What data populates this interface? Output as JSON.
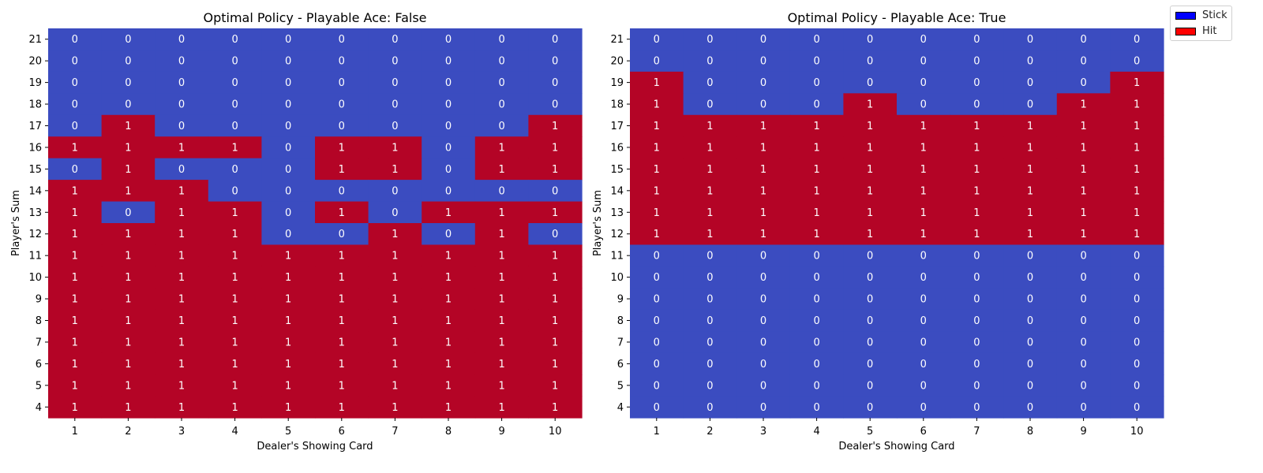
{
  "chart_data": [
    {
      "type": "heatmap",
      "title": "Optimal Policy - Playable Ace: False",
      "xlabel": "Dealer's Showing Card",
      "ylabel": "Player's Sum",
      "x": [
        1,
        2,
        3,
        4,
        5,
        6,
        7,
        8,
        9,
        10
      ],
      "y": [
        21,
        20,
        19,
        18,
        17,
        16,
        15,
        14,
        13,
        12,
        11,
        10,
        9,
        8,
        7,
        6,
        5,
        4
      ],
      "values": [
        [
          0,
          0,
          0,
          0,
          0,
          0,
          0,
          0,
          0,
          0
        ],
        [
          0,
          0,
          0,
          0,
          0,
          0,
          0,
          0,
          0,
          0
        ],
        [
          0,
          0,
          0,
          0,
          0,
          0,
          0,
          0,
          0,
          0
        ],
        [
          0,
          0,
          0,
          0,
          0,
          0,
          0,
          0,
          0,
          0
        ],
        [
          0,
          1,
          0,
          0,
          0,
          0,
          0,
          0,
          0,
          1
        ],
        [
          1,
          1,
          1,
          1,
          0,
          1,
          1,
          0,
          1,
          1
        ],
        [
          0,
          1,
          0,
          0,
          0,
          1,
          1,
          0,
          1,
          1
        ],
        [
          1,
          1,
          1,
          0,
          0,
          0,
          0,
          0,
          0,
          0
        ],
        [
          1,
          0,
          1,
          1,
          0,
          1,
          0,
          1,
          1,
          1
        ],
        [
          1,
          1,
          1,
          1,
          0,
          0,
          1,
          0,
          1,
          0
        ],
        [
          1,
          1,
          1,
          1,
          1,
          1,
          1,
          1,
          1,
          1
        ],
        [
          1,
          1,
          1,
          1,
          1,
          1,
          1,
          1,
          1,
          1
        ],
        [
          1,
          1,
          1,
          1,
          1,
          1,
          1,
          1,
          1,
          1
        ],
        [
          1,
          1,
          1,
          1,
          1,
          1,
          1,
          1,
          1,
          1
        ],
        [
          1,
          1,
          1,
          1,
          1,
          1,
          1,
          1,
          1,
          1
        ],
        [
          1,
          1,
          1,
          1,
          1,
          1,
          1,
          1,
          1,
          1
        ],
        [
          1,
          1,
          1,
          1,
          1,
          1,
          1,
          1,
          1,
          1
        ],
        [
          1,
          1,
          1,
          1,
          1,
          1,
          1,
          1,
          1,
          1
        ]
      ]
    },
    {
      "type": "heatmap",
      "title": "Optimal Policy - Playable Ace: True",
      "xlabel": "Dealer's Showing Card",
      "ylabel": "Player's Sum",
      "x": [
        1,
        2,
        3,
        4,
        5,
        6,
        7,
        8,
        9,
        10
      ],
      "y": [
        21,
        20,
        19,
        18,
        17,
        16,
        15,
        14,
        13,
        12,
        11,
        10,
        9,
        8,
        7,
        6,
        5,
        4
      ],
      "values": [
        [
          0,
          0,
          0,
          0,
          0,
          0,
          0,
          0,
          0,
          0
        ],
        [
          0,
          0,
          0,
          0,
          0,
          0,
          0,
          0,
          0,
          0
        ],
        [
          1,
          0,
          0,
          0,
          0,
          0,
          0,
          0,
          0,
          1
        ],
        [
          1,
          0,
          0,
          0,
          1,
          0,
          0,
          0,
          1,
          1
        ],
        [
          1,
          1,
          1,
          1,
          1,
          1,
          1,
          1,
          1,
          1
        ],
        [
          1,
          1,
          1,
          1,
          1,
          1,
          1,
          1,
          1,
          1
        ],
        [
          1,
          1,
          1,
          1,
          1,
          1,
          1,
          1,
          1,
          1
        ],
        [
          1,
          1,
          1,
          1,
          1,
          1,
          1,
          1,
          1,
          1
        ],
        [
          1,
          1,
          1,
          1,
          1,
          1,
          1,
          1,
          1,
          1
        ],
        [
          1,
          1,
          1,
          1,
          1,
          1,
          1,
          1,
          1,
          1
        ],
        [
          0,
          0,
          0,
          0,
          0,
          0,
          0,
          0,
          0,
          0
        ],
        [
          0,
          0,
          0,
          0,
          0,
          0,
          0,
          0,
          0,
          0
        ],
        [
          0,
          0,
          0,
          0,
          0,
          0,
          0,
          0,
          0,
          0
        ],
        [
          0,
          0,
          0,
          0,
          0,
          0,
          0,
          0,
          0,
          0
        ],
        [
          0,
          0,
          0,
          0,
          0,
          0,
          0,
          0,
          0,
          0
        ],
        [
          0,
          0,
          0,
          0,
          0,
          0,
          0,
          0,
          0,
          0
        ],
        [
          0,
          0,
          0,
          0,
          0,
          0,
          0,
          0,
          0,
          0
        ],
        [
          0,
          0,
          0,
          0,
          0,
          0,
          0,
          0,
          0,
          0
        ]
      ]
    }
  ],
  "cell_colors": {
    "0": "#3b4cc0",
    "1": "#b40426"
  },
  "legend": {
    "placement": "top-right",
    "items": [
      {
        "label": "Stick",
        "color": "#0000ff"
      },
      {
        "label": "Hit",
        "color": "#ff0000"
      }
    ]
  }
}
